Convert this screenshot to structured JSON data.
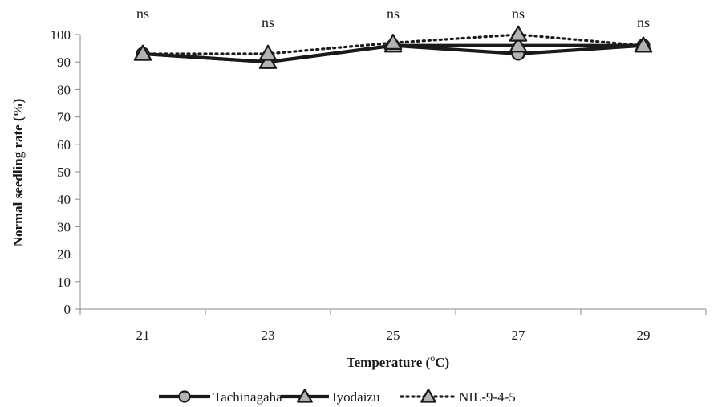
{
  "chart_data": {
    "type": "line",
    "title": "",
    "xlabel": "Temperature (°C)",
    "xlabel_parts": {
      "pre": "Temperature (",
      "sup": "o",
      "post": "C)"
    },
    "ylabel": "Normal seedling  rate (%)",
    "ylim": [
      0,
      100
    ],
    "yticks": [
      0,
      10,
      20,
      30,
      40,
      50,
      60,
      70,
      80,
      90,
      100
    ],
    "categories": [
      "21",
      "23",
      "25",
      "27",
      "29"
    ],
    "annotations": [
      "ns",
      "ns",
      "ns",
      "ns",
      "ns"
    ],
    "series": [
      {
        "name": "Tachinagaha",
        "values": [
          93,
          90,
          96,
          93,
          96
        ],
        "marker": "circle",
        "line": "solid",
        "color": "#1a1a1a",
        "marker_fill": "#b3b3b3"
      },
      {
        "name": "Iyodaizu",
        "values": [
          93,
          90,
          96,
          96,
          96
        ],
        "marker": "triangle",
        "line": "solid",
        "color": "#1a1a1a",
        "marker_fill": "#b3b3b3"
      },
      {
        "name": "NIL-9-4-5",
        "values": [
          93,
          93,
          97,
          100,
          96
        ],
        "marker": "triangle",
        "line": "dotted",
        "color": "#1a1a1a",
        "marker_fill": "#b3b3b3"
      }
    ],
    "grid": false,
    "legend_position": "bottom"
  }
}
